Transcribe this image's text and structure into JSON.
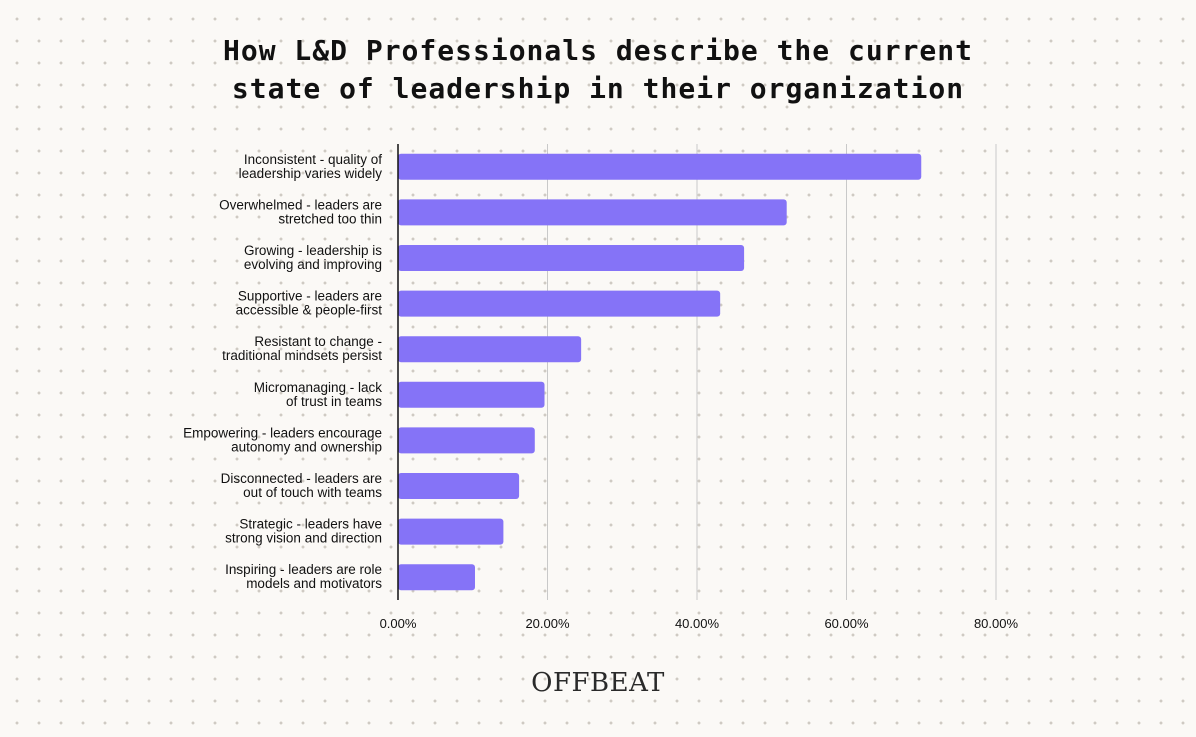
{
  "title_lines": [
    "How L&D Professionals describe the current",
    "state of leadership in their organization"
  ],
  "brand": "OFFBEAT",
  "colors": {
    "bar": "#8573f7",
    "grid": "#c9c9c9",
    "axis": "#111111"
  },
  "chart_data": {
    "type": "bar",
    "orientation": "horizontal",
    "title": "How L&D Professionals describe the current state of leadership in their organization",
    "categories": [
      [
        "Inconsistent - quality of",
        "leadership varies widely"
      ],
      [
        "Overwhelmed - leaders are",
        "stretched too thin"
      ],
      [
        "Growing - leadership is",
        "evolving and improving"
      ],
      [
        "Supportive - leaders are",
        "accessible & people-first"
      ],
      [
        "Resistant to change -",
        "traditional mindsets persist"
      ],
      [
        "Micromanaging - lack",
        "of trust in teams"
      ],
      [
        "Empowering - leaders encourage",
        "autonomy and ownership"
      ],
      [
        "Disconnected - leaders are",
        "out of touch with  teams"
      ],
      [
        "Strategic - leaders have",
        "strong vision and direction"
      ],
      [
        "Inspiring - leaders are role",
        "models and motivators"
      ]
    ],
    "values": [
      70.0,
      52.0,
      46.3,
      43.1,
      24.5,
      19.6,
      18.3,
      16.2,
      14.1,
      10.3
    ],
    "xlim": [
      0,
      80
    ],
    "xticks": [
      "0.00%",
      "20.00%",
      "40.00%",
      "60.00%",
      "80.00%"
    ],
    "xlabel": "",
    "ylabel": "",
    "grid": true
  }
}
